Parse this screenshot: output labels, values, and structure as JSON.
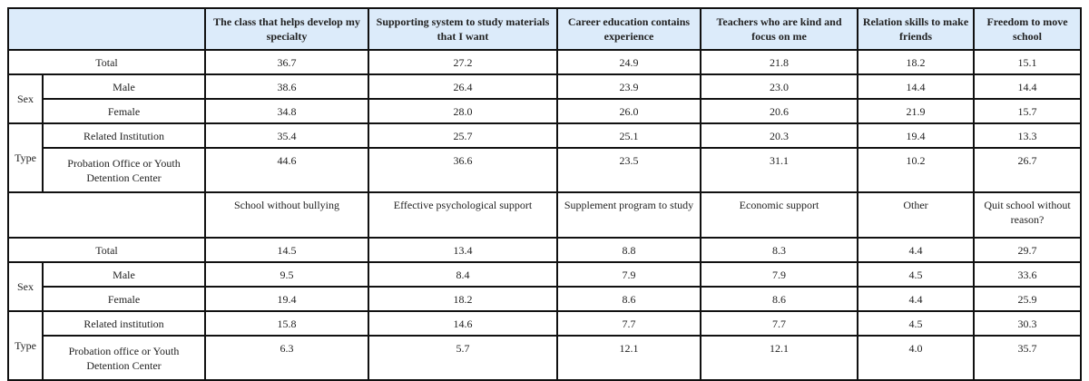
{
  "header1": [
    "The class that helps develop my specialty",
    "Supporting system to study materials that I want",
    "Career education contains experience",
    "Teachers who are kind and focus on me",
    "Relation skills to make friends",
    "Freedom to move school"
  ],
  "block1": {
    "total": {
      "label": "Total",
      "values": [
        "36.7",
        "27.2",
        "24.9",
        "21.8",
        "18.2",
        "15.1"
      ]
    },
    "sex_label": "Sex",
    "male": {
      "label": "Male",
      "values": [
        "38.6",
        "26.4",
        "23.9",
        "23.0",
        "14.4",
        "14.4"
      ]
    },
    "female": {
      "label": "Female",
      "values": [
        "34.8",
        "28.0",
        "26.0",
        "20.6",
        "21.9",
        "15.7"
      ]
    },
    "type_label": "Type",
    "related": {
      "label": "Related Institution",
      "values": [
        "35.4",
        "25.7",
        "25.1",
        "20.3",
        "19.4",
        "13.3"
      ]
    },
    "probation": {
      "label": "Probation Office or Youth Detention Center",
      "values": [
        "44.6",
        "36.6",
        "23.5",
        "31.1",
        "10.2",
        "26.7"
      ]
    }
  },
  "header2": [
    "School without bullying",
    "Effective psychological support",
    "Supplement program to study",
    "Economic support",
    "Other",
    "Quit school without reason?"
  ],
  "block2": {
    "total": {
      "label": "Total",
      "values": [
        "14.5",
        "13.4",
        "8.8",
        "8.3",
        "4.4",
        "29.7"
      ]
    },
    "sex_label": "Sex",
    "male": {
      "label": "Male",
      "values": [
        "9.5",
        "8.4",
        "7.9",
        "7.9",
        "4.5",
        "33.6"
      ]
    },
    "female": {
      "label": "Female",
      "values": [
        "19.4",
        "18.2",
        "8.6",
        "8.6",
        "4.4",
        "25.9"
      ]
    },
    "type_label": "Type",
    "related": {
      "label": "Related institution",
      "values": [
        "15.8",
        "14.6",
        "7.7",
        "7.7",
        "4.5",
        "30.3"
      ]
    },
    "probation": {
      "label": "Probation office or Youth Detention Center",
      "values": [
        "6.3",
        "5.7",
        "12.1",
        "12.1",
        "4.0",
        "35.7"
      ]
    }
  }
}
